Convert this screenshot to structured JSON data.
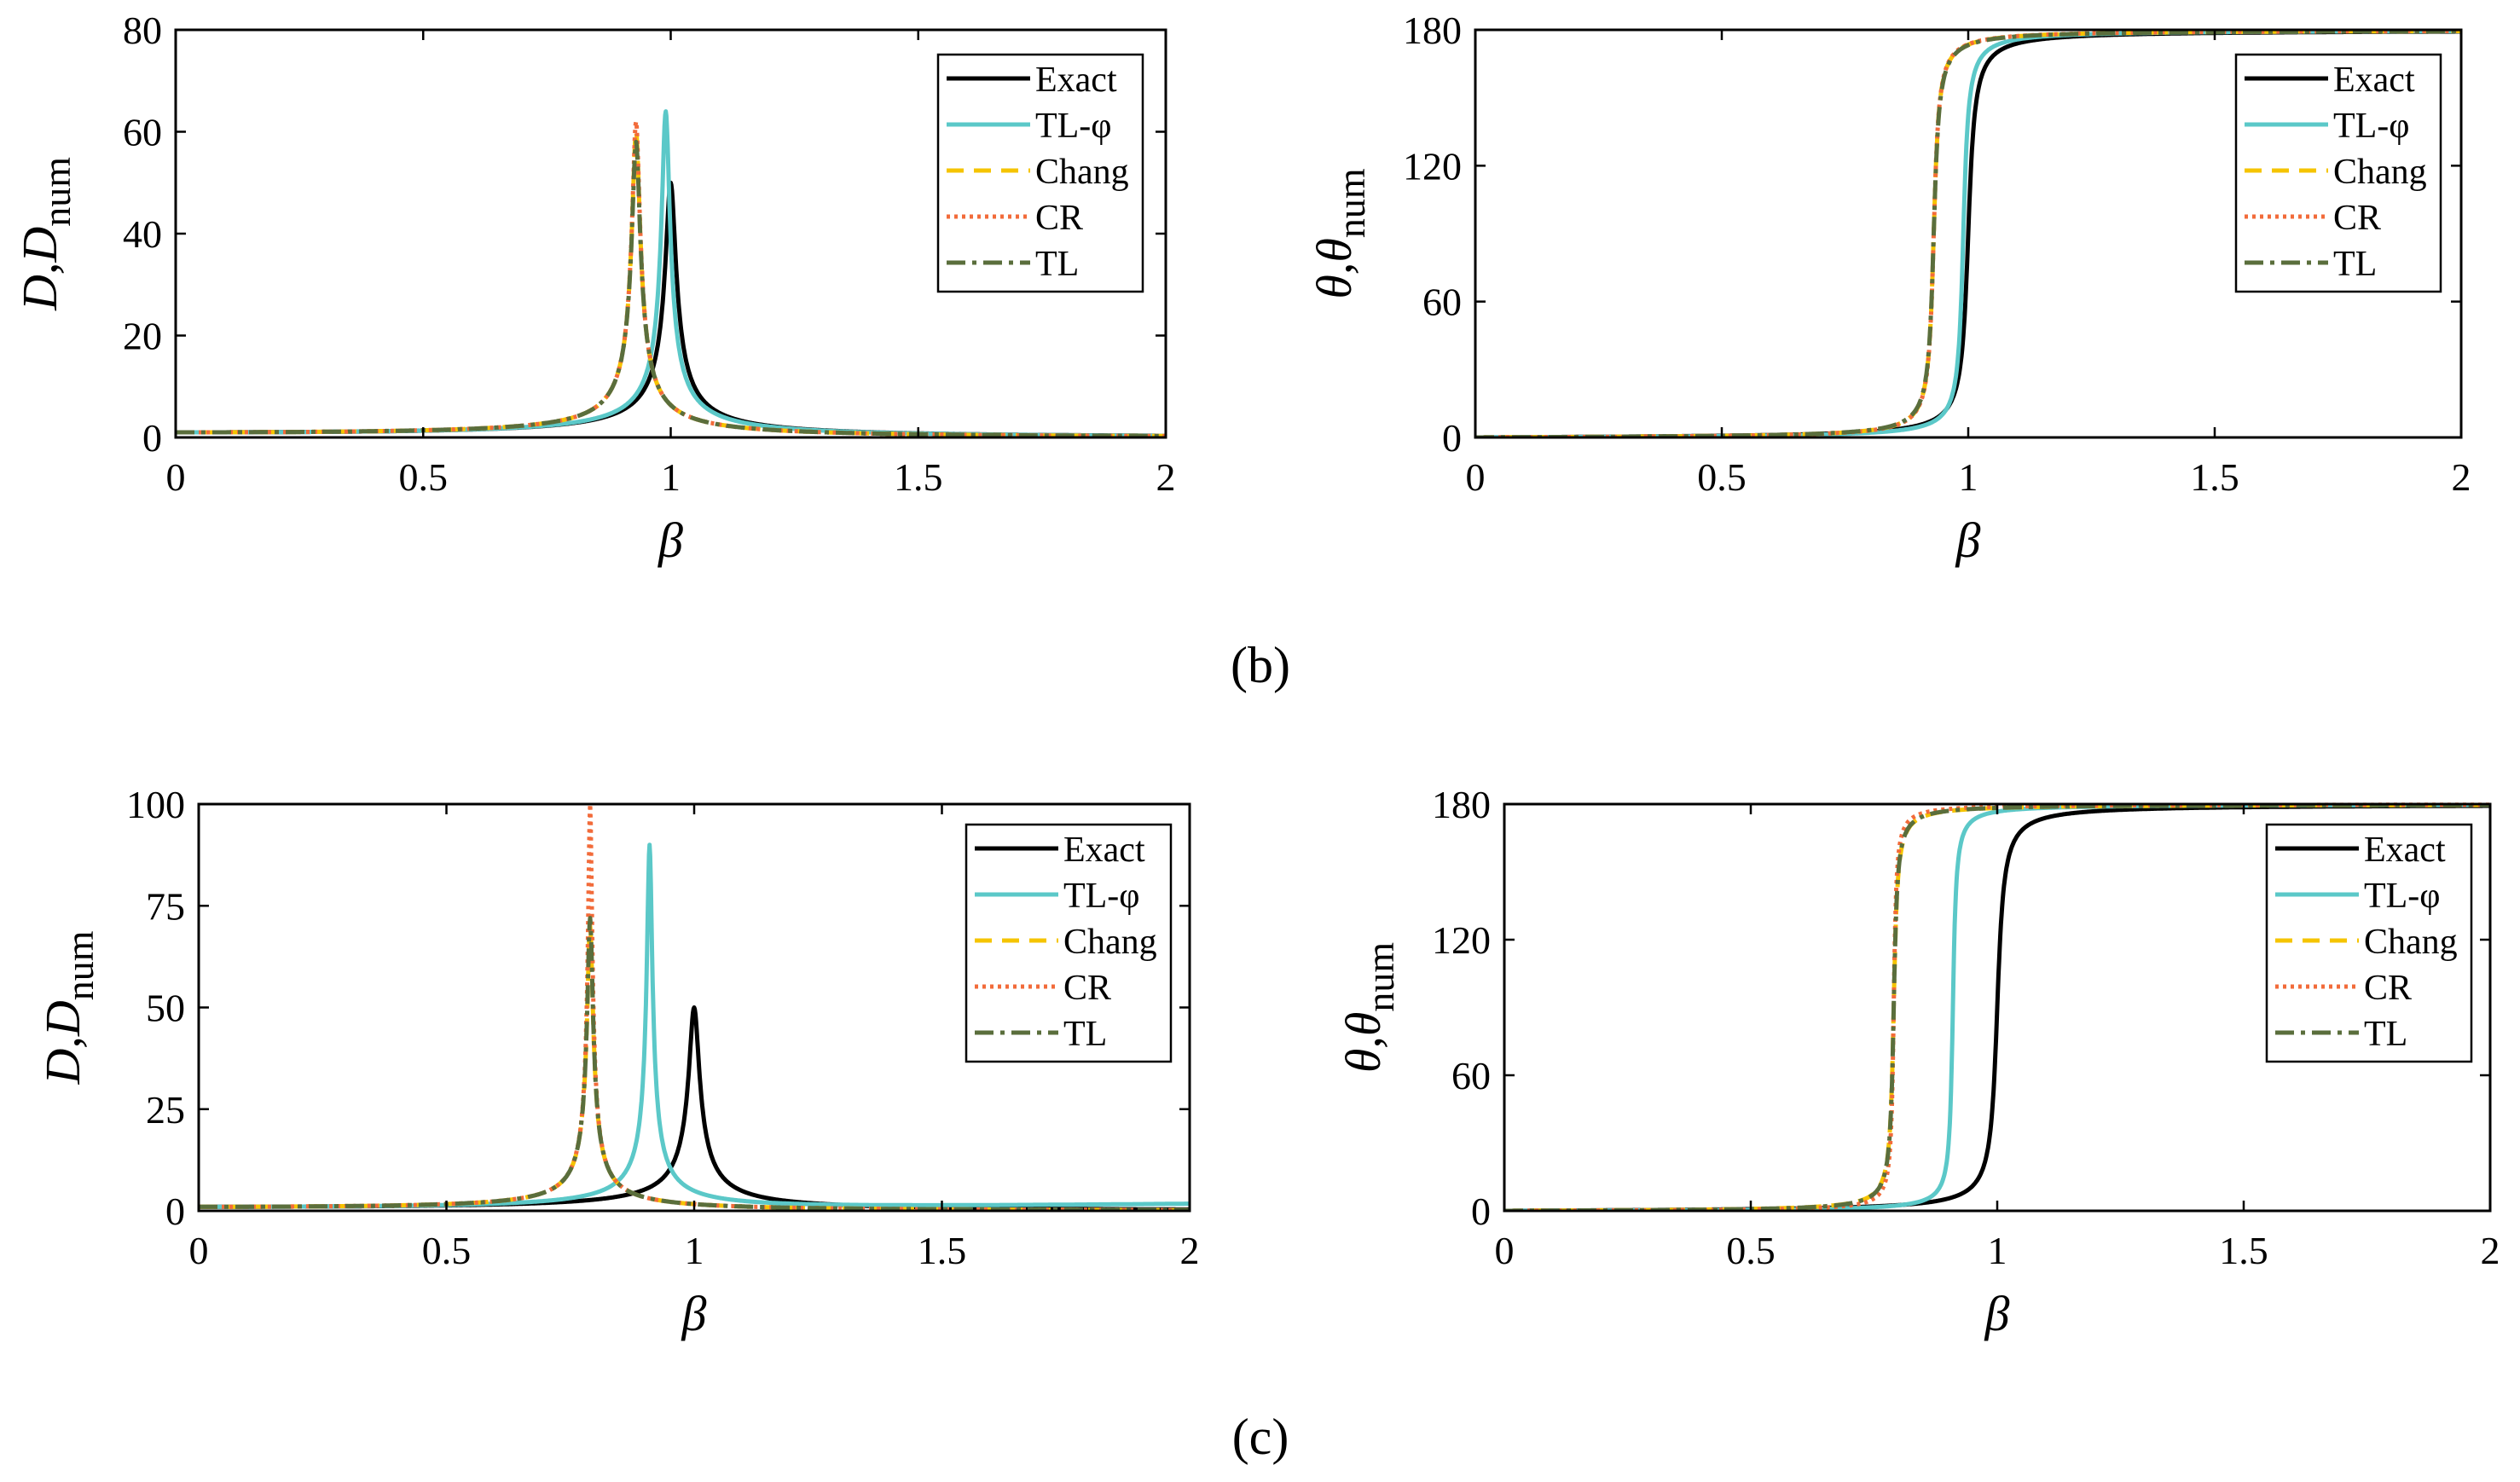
{
  "captions": [
    "(b)",
    "(c)"
  ],
  "colors": {
    "Exact": "#000000",
    "TL-φ": "#5bc8c8",
    "Chang": "#f5c400",
    "CR": "#f26b3a",
    "TL": "#5a6e3c"
  },
  "chart_data": [
    {
      "id": "b-amp",
      "type": "line",
      "caption": "(b)",
      "ylabel_main": "D,D",
      "ylabel_sub": "num",
      "xlabel": "β",
      "xlim": [
        0,
        2
      ],
      "ylim": [
        0,
        80
      ],
      "xticks": [
        0,
        0.5,
        1,
        1.5,
        2
      ],
      "xtick_labels": [
        "0",
        "0.5",
        "1",
        "1.5",
        "2"
      ],
      "yticks": [
        0,
        20,
        40,
        60,
        80
      ],
      "ytick_labels": [
        "0",
        "20",
        "40",
        "60",
        "80"
      ],
      "legend": [
        "Exact",
        "TL-φ",
        "Chang",
        "CR",
        "TL"
      ],
      "series": [
        {
          "name": "Exact",
          "kind": "amp",
          "wn": 1.0,
          "peak": 50
        },
        {
          "name": "TL-φ",
          "kind": "amp",
          "wn": 0.99,
          "peak": 64
        },
        {
          "name": "Chang",
          "kind": "amp",
          "wn": 0.93,
          "peak": 60
        },
        {
          "name": "CR",
          "kind": "amp",
          "wn": 0.93,
          "peak": 62
        },
        {
          "name": "TL",
          "kind": "amp",
          "wn": 0.93,
          "peak": 58
        }
      ]
    },
    {
      "id": "b-phase",
      "type": "line",
      "caption": "(b)",
      "ylabel_main": "θ,θ",
      "ylabel_sub": "num",
      "xlabel": "β",
      "xlim": [
        0,
        2
      ],
      "ylim": [
        0,
        180
      ],
      "xticks": [
        0,
        0.5,
        1,
        1.5,
        2
      ],
      "xtick_labels": [
        "0",
        "0.5",
        "1",
        "1.5",
        "2"
      ],
      "yticks": [
        0,
        60,
        120,
        180
      ],
      "ytick_labels": [
        "0",
        "60",
        "120",
        "180"
      ],
      "legend": [
        "Exact",
        "TL-φ",
        "Chang",
        "CR",
        "TL"
      ],
      "series": [
        {
          "name": "Exact",
          "kind": "phase",
          "wn": 1.0,
          "zeta": 0.01
        },
        {
          "name": "TL-φ",
          "kind": "phase",
          "wn": 0.99,
          "zeta": 0.0078
        },
        {
          "name": "Chang",
          "kind": "phase",
          "wn": 0.93,
          "zeta": 0.0083
        },
        {
          "name": "CR",
          "kind": "phase",
          "wn": 0.93,
          "zeta": 0.0081
        },
        {
          "name": "TL",
          "kind": "phase",
          "wn": 0.93,
          "zeta": 0.0086
        }
      ]
    },
    {
      "id": "c-amp",
      "type": "line",
      "caption": "(c)",
      "ylabel_main": "D,D",
      "ylabel_sub": "num",
      "xlabel": "β",
      "xlim": [
        0,
        2
      ],
      "ylim": [
        0,
        100
      ],
      "xticks": [
        0,
        0.5,
        1,
        1.5,
        2
      ],
      "xtick_labels": [
        "0",
        "0.5",
        "1",
        "1.5",
        "2"
      ],
      "yticks": [
        0,
        25,
        50,
        75,
        100
      ],
      "ytick_labels": [
        "0",
        "25",
        "50",
        "75",
        "100"
      ],
      "legend": [
        "Exact",
        "TL-φ",
        "Chang",
        "CR",
        "TL"
      ],
      "series": [
        {
          "name": "Exact",
          "kind": "amp",
          "wn": 1.0,
          "peak": 50
        },
        {
          "name": "TL-φ",
          "kind": "amp",
          "wn": 0.91,
          "peak": 90,
          "tail": 3
        },
        {
          "name": "Chang",
          "kind": "amp",
          "wn": 0.79,
          "peak": 70
        },
        {
          "name": "CR",
          "kind": "amp",
          "wn": 0.79,
          "peak": 100
        },
        {
          "name": "TL",
          "kind": "amp",
          "wn": 0.79,
          "peak": 72
        }
      ]
    },
    {
      "id": "c-phase",
      "type": "line",
      "caption": "(c)",
      "ylabel_main": "θ,θ",
      "ylabel_sub": "num",
      "xlabel": "β",
      "xlim": [
        0,
        2
      ],
      "ylim": [
        0,
        180
      ],
      "xticks": [
        0,
        0.5,
        1,
        1.5,
        2
      ],
      "xtick_labels": [
        "0",
        "0.5",
        "1",
        "1.5",
        "2"
      ],
      "yticks": [
        0,
        60,
        120,
        180
      ],
      "ytick_labels": [
        "0",
        "60",
        "120",
        "180"
      ],
      "legend": [
        "Exact",
        "TL-φ",
        "Chang",
        "CR",
        "TL"
      ],
      "series": [
        {
          "name": "Exact",
          "kind": "phase",
          "wn": 1.0,
          "zeta": 0.01
        },
        {
          "name": "TL-φ",
          "kind": "phase",
          "wn": 0.91,
          "zeta": 0.0055
        },
        {
          "name": "Chang",
          "kind": "phase",
          "wn": 0.79,
          "zeta": 0.0071
        },
        {
          "name": "CR",
          "kind": "phase",
          "wn": 0.79,
          "zeta": 0.005
        },
        {
          "name": "TL",
          "kind": "phase",
          "wn": 0.79,
          "zeta": 0.0069
        }
      ]
    }
  ]
}
